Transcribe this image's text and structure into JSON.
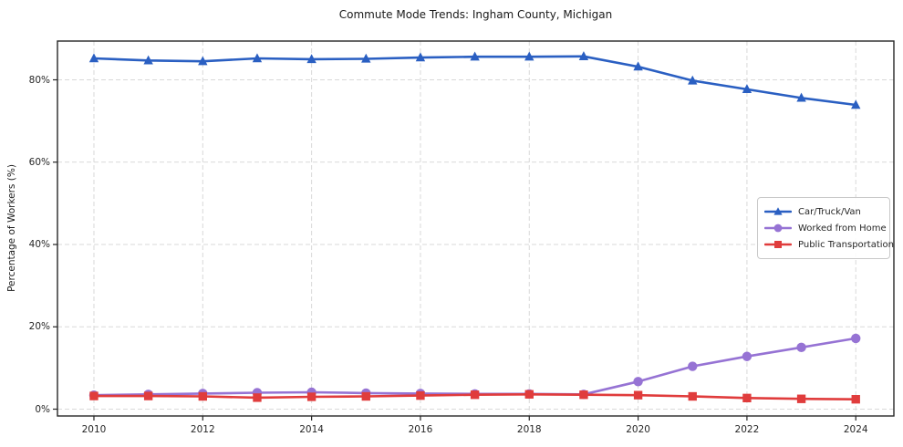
{
  "chart_data": {
    "type": "line",
    "title": "Commute Mode Trends: Ingham County, Michigan",
    "xlabel": "",
    "ylabel": "Percentage of Workers (%)",
    "x": [
      2010,
      2011,
      2012,
      2013,
      2014,
      2015,
      2016,
      2017,
      2018,
      2019,
      2020,
      2021,
      2022,
      2023,
      2024
    ],
    "series": [
      {
        "name": "Car/Truck/Van",
        "marker": "triangle",
        "color": "#2a5fc2",
        "values": [
          85.2,
          84.7,
          84.5,
          85.2,
          85.0,
          85.1,
          85.4,
          85.6,
          85.6,
          85.7,
          83.2,
          79.8,
          77.7,
          75.6,
          73.9
        ]
      },
      {
        "name": "Worked from Home",
        "marker": "circle",
        "color": "#9673d4",
        "values": [
          3.4,
          3.6,
          3.8,
          4.0,
          4.1,
          3.9,
          3.8,
          3.7,
          3.7,
          3.6,
          6.7,
          10.4,
          12.8,
          15.0,
          17.2
        ]
      },
      {
        "name": "Public Transportation",
        "marker": "square",
        "color": "#e03c3c",
        "values": [
          3.2,
          3.2,
          3.1,
          2.8,
          3.0,
          3.1,
          3.3,
          3.5,
          3.6,
          3.5,
          3.4,
          3.1,
          2.7,
          2.5,
          2.4
        ]
      }
    ],
    "xticks": [
      2010,
      2012,
      2014,
      2016,
      2018,
      2020,
      2022,
      2024
    ],
    "xtick_labels": [
      "2010",
      "2012",
      "2014",
      "2016",
      "2018",
      "2020",
      "2022",
      "2024"
    ],
    "yticks": [
      0,
      20,
      40,
      60,
      80
    ],
    "ytick_labels": [
      "0%",
      "20%",
      "40%",
      "60%",
      "80%"
    ],
    "xlim": [
      2009.33,
      2024.7
    ],
    "ylim": [
      -1.66,
      89.42
    ],
    "grid": true,
    "grid_color": "#d9d9d9",
    "spine_color": "#262626",
    "legend_position": "center-right"
  }
}
